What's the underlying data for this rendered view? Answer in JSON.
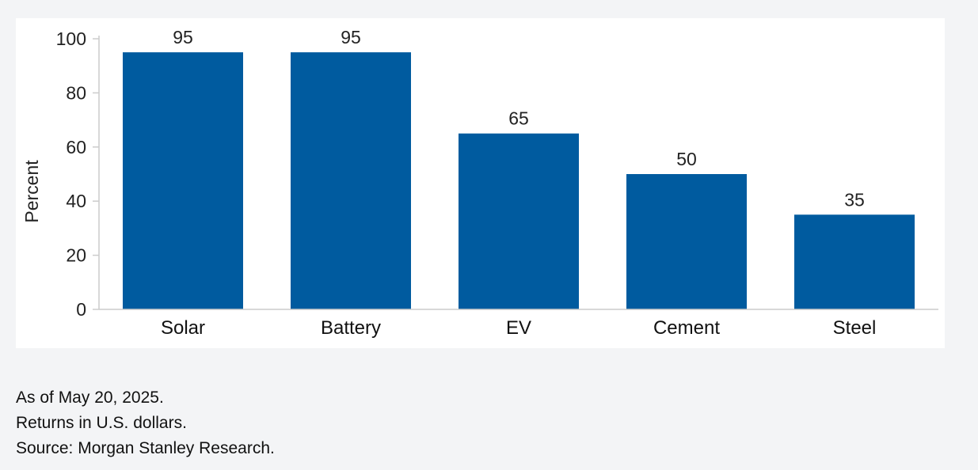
{
  "chart_data": {
    "type": "bar",
    "categories": [
      "Solar",
      "Battery",
      "EV",
      "Cement",
      "Steel"
    ],
    "values": [
      95,
      95,
      65,
      50,
      35
    ],
    "data_labels": [
      "95",
      "95",
      "65",
      "50",
      "35"
    ],
    "title": "",
    "xlabel": "",
    "ylabel": "Percent",
    "ylim": [
      0,
      100
    ],
    "yticks": [
      0,
      20,
      40,
      60,
      80,
      100
    ],
    "grid": false,
    "legend": "none",
    "bar_color": "#005b9f",
    "axis_color": "#cccccc"
  },
  "notes": [
    "As of May 20, 2025.",
    "Returns in U.S. dollars.",
    "Source: Morgan Stanley Research."
  ]
}
